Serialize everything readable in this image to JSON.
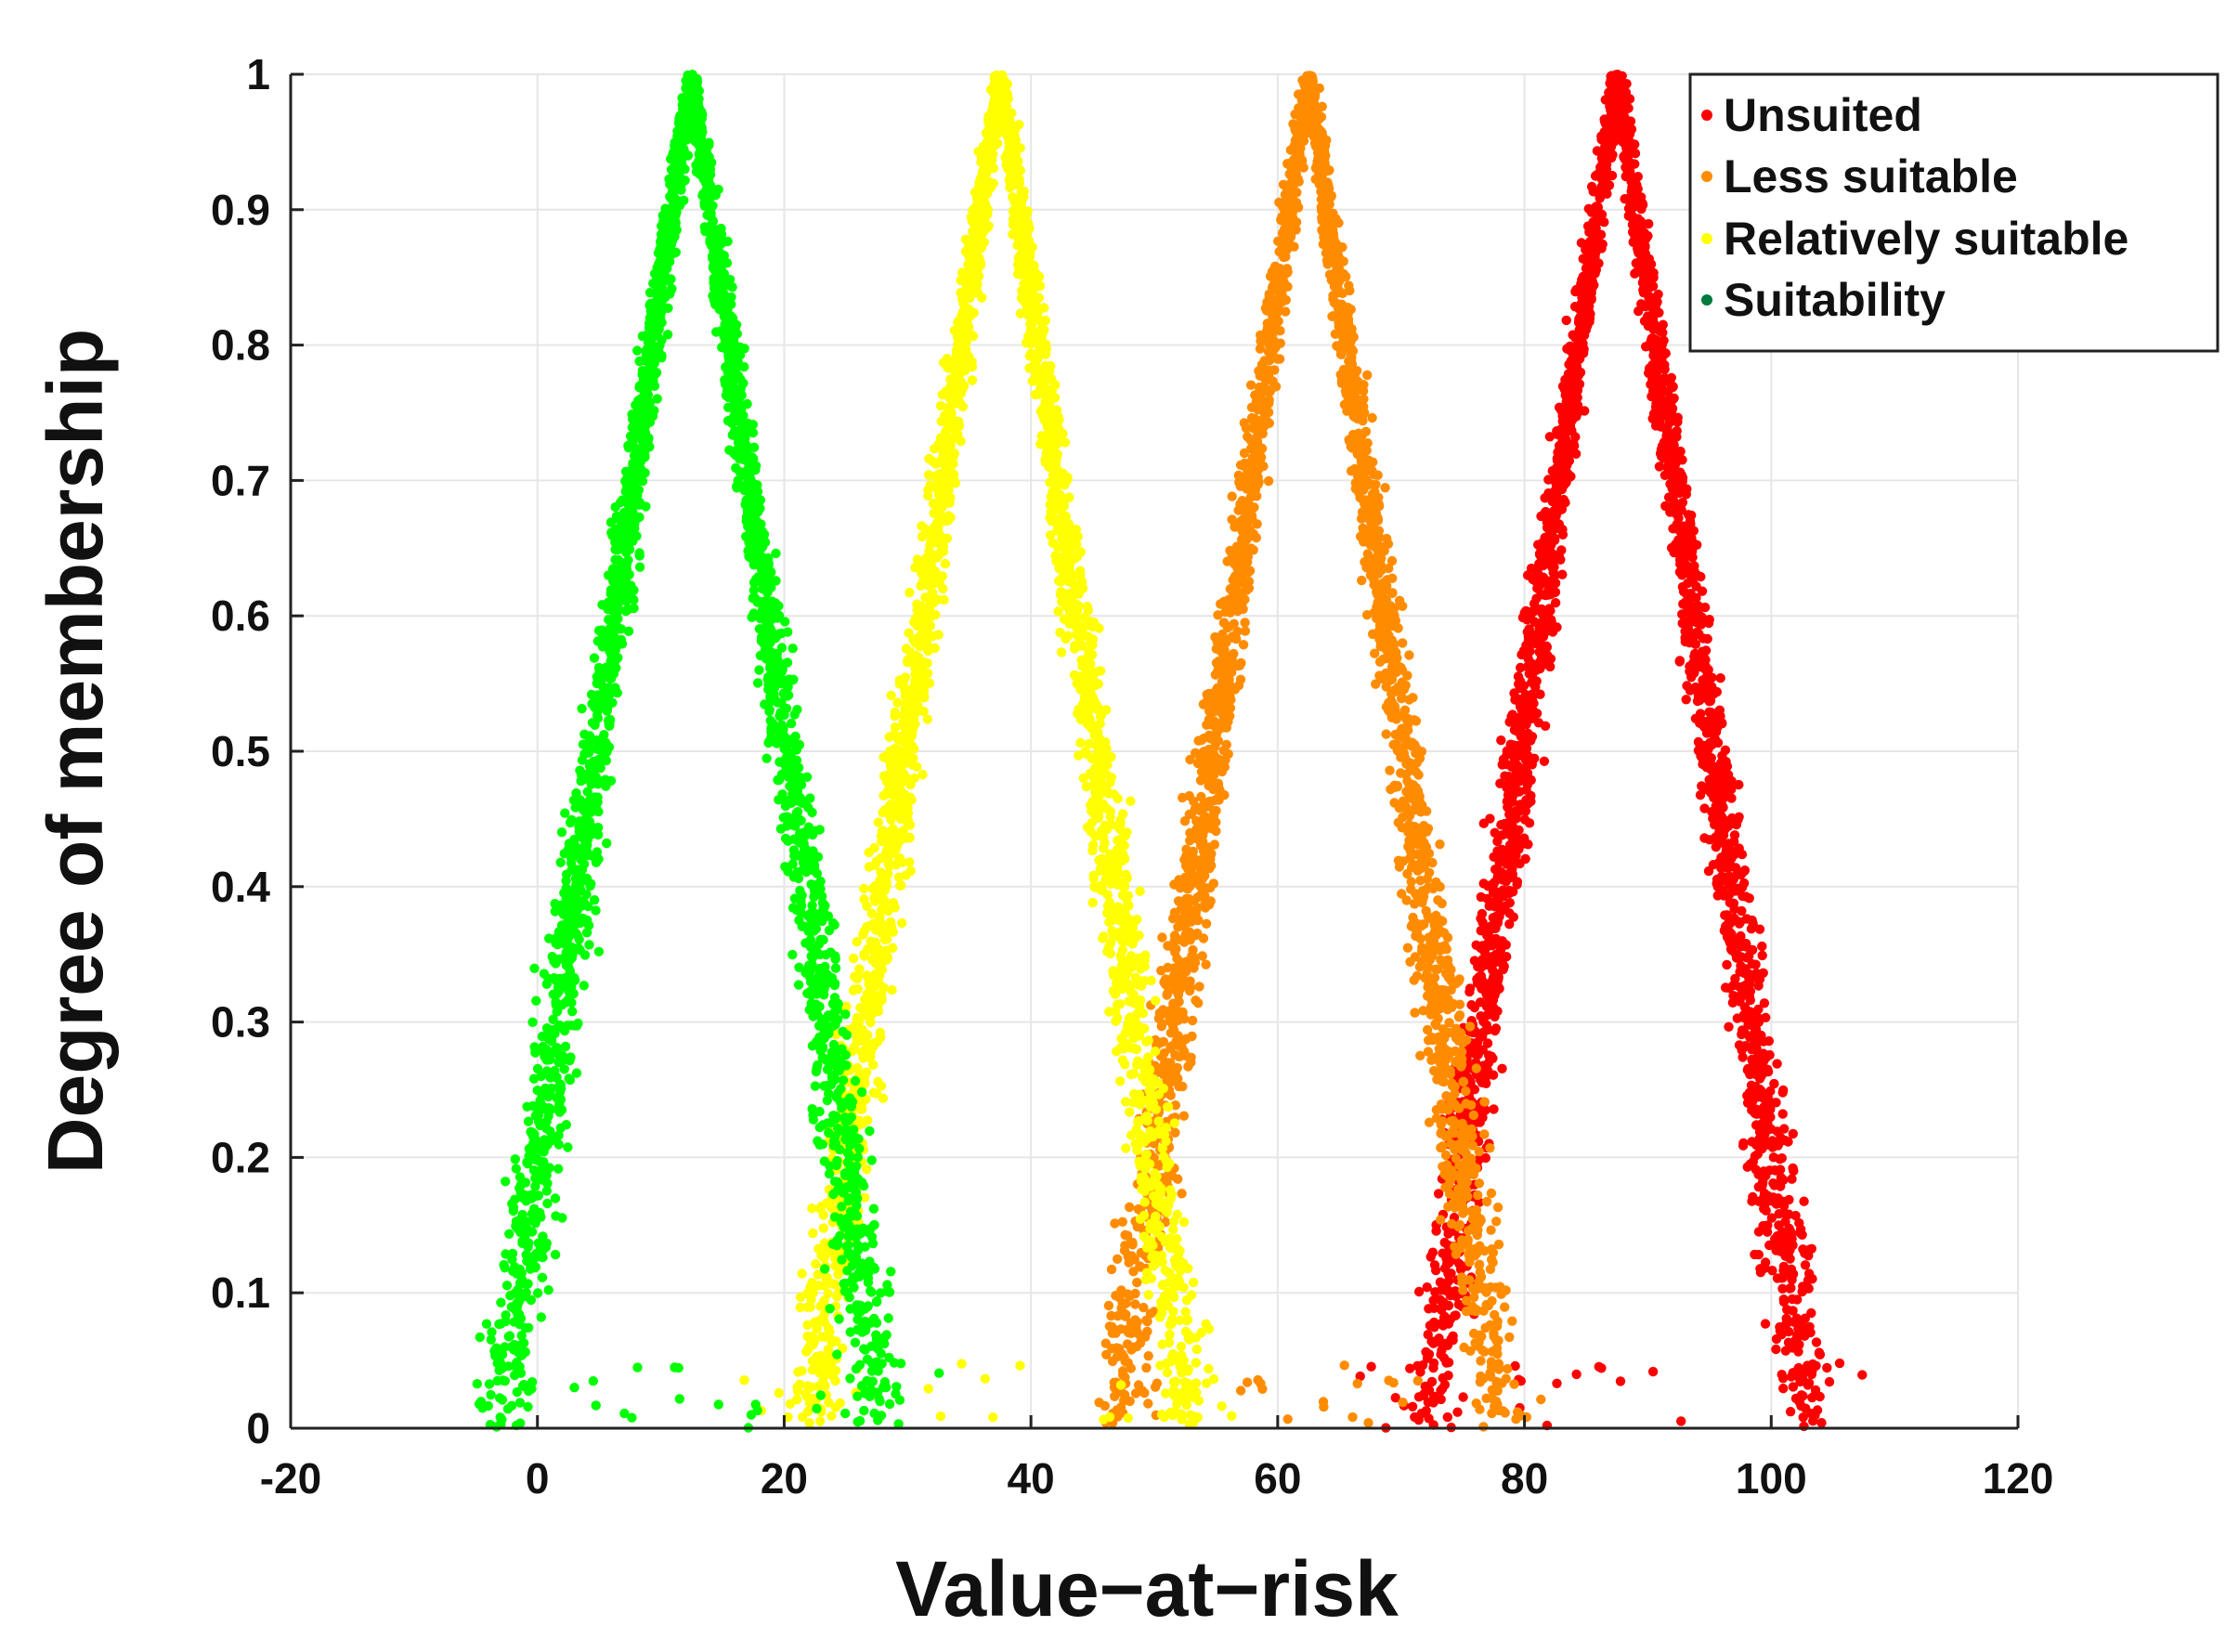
{
  "chart_data": {
    "type": "scatter",
    "title": "",
    "xlabel": "Value−at−risk",
    "ylabel": "Degree of membership",
    "xlim": [
      -20,
      120
    ],
    "ylim": [
      0,
      1
    ],
    "xticks": [
      -20,
      0,
      20,
      40,
      60,
      80,
      100,
      120
    ],
    "yticks": [
      0,
      0.1,
      0.2,
      0.3,
      0.4,
      0.5,
      0.6,
      0.7,
      0.8,
      0.9,
      1
    ],
    "xtick_labels": [
      "-20",
      "0",
      "20",
      "40",
      "60",
      "80",
      "100",
      "120"
    ],
    "ytick_labels": [
      "0",
      "0.1",
      "0.2",
      "0.3",
      "0.4",
      "0.5",
      "0.6",
      "0.7",
      "0.8",
      "0.9",
      "1"
    ],
    "grid": true,
    "legend_position": "top-right",
    "series": [
      {
        "name": "Unsuited",
        "color": "#ff0000",
        "peak_x": 87.5,
        "support": [
          72,
          103
        ],
        "range": [
          66,
          108
        ],
        "shape": "triangular"
      },
      {
        "name": "Less suitable",
        "color": "#ff8c00",
        "peak_x": 62.5,
        "support": [
          47,
          78
        ],
        "range": [
          43,
          82
        ],
        "shape": "triangular"
      },
      {
        "name": "Relatively suitable",
        "color": "#ffff00",
        "peak_x": 37.5,
        "support": [
          22,
          53
        ],
        "range": [
          16,
          58
        ],
        "shape": "triangular"
      },
      {
        "name": "Suitability",
        "color": "#00ff00",
        "legend_marker_color": "#007a3d",
        "peak_x": 12.5,
        "support": [
          -3,
          28
        ],
        "range": [
          -5,
          34
        ],
        "shape": "triangular"
      }
    ]
  }
}
